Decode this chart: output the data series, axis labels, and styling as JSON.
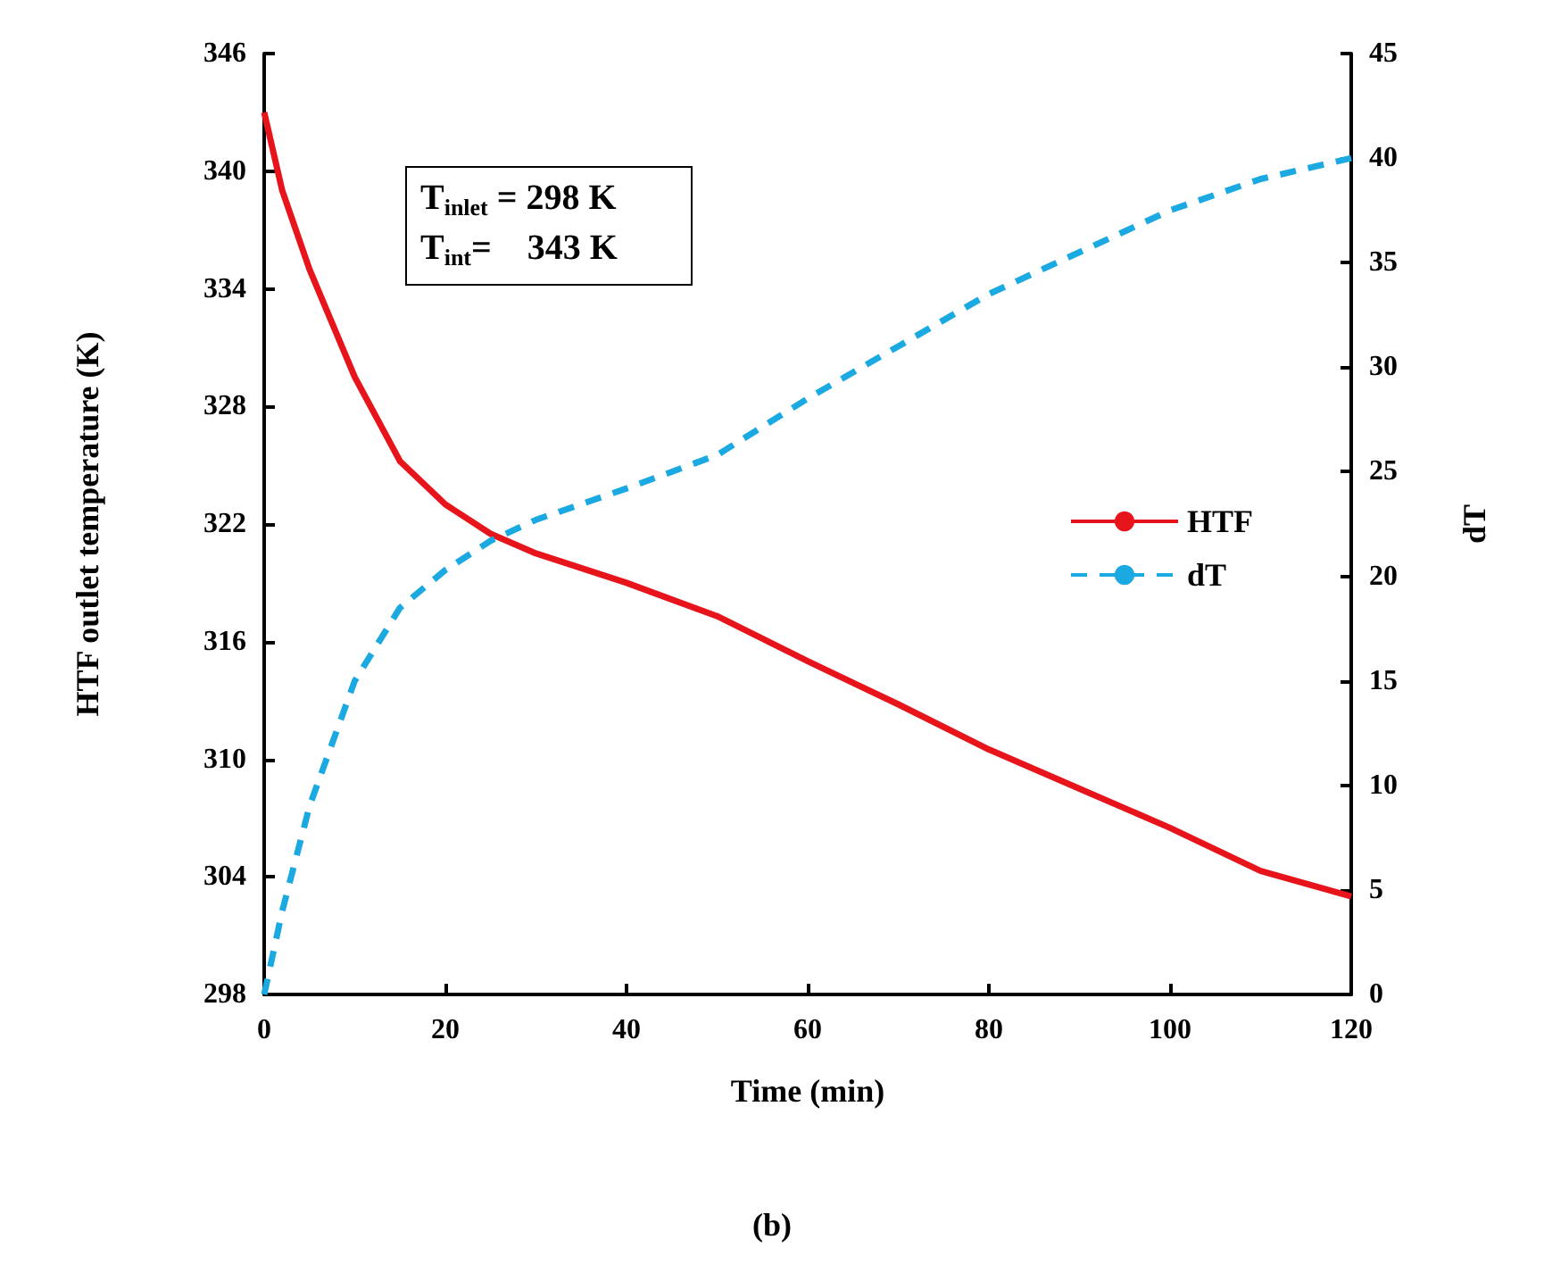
{
  "chart_data": {
    "type": "line",
    "xlabel": "Time (min)",
    "ylabel": "HTF outlet temperature (K)",
    "y2label": "dT",
    "x": [
      0,
      2,
      5,
      10,
      15,
      20,
      25,
      30,
      40,
      50,
      60,
      70,
      80,
      90,
      100,
      110,
      120
    ],
    "series": [
      {
        "name": "HTF",
        "color": "#e8141b",
        "line_style": "solid",
        "values": [
          343,
          339,
          335,
          329.5,
          325.2,
          323,
          321.5,
          320.5,
          319,
          317.3,
          315,
          312.8,
          310.5,
          308.5,
          306.5,
          304.3,
          303
        ]
      },
      {
        "name": "dT",
        "color": "#1ba9e1",
        "line_style": "dashed",
        "axis": "y2",
        "values": [
          0,
          4,
          9,
          15,
          18.5,
          20.3,
          21.7,
          22.7,
          24.2,
          25.8,
          28.5,
          31,
          33.5,
          35.5,
          37.5,
          39,
          40
        ]
      }
    ],
    "xlim": [
      0,
      120
    ],
    "xticks": [
      0,
      20,
      40,
      60,
      80,
      100,
      120
    ],
    "ylim": [
      298,
      346
    ],
    "yticks": [
      298,
      304,
      310,
      316,
      322,
      328,
      334,
      340,
      346
    ],
    "y2lim": [
      0,
      45
    ],
    "y2ticks": [
      0,
      5,
      10,
      15,
      20,
      25,
      30,
      35,
      40,
      45
    ],
    "grid": false,
    "legend": "right",
    "marker": "none",
    "annotations": [
      "T$_{inlet}$ = 298 K",
      "T$_{int}$=    343 K",
      "(b)"
    ]
  }
}
